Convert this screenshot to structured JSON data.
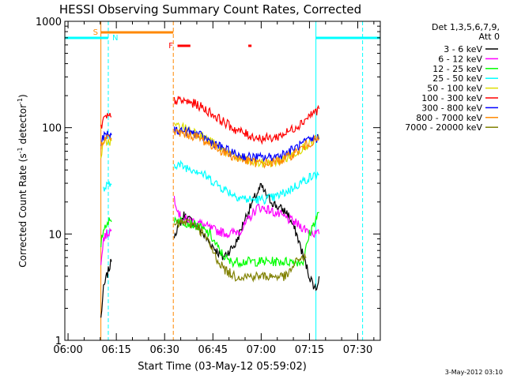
{
  "chart_data": {
    "type": "line",
    "title": "HESSI Observing Summary Count Rates, Corrected",
    "xlabel": "Start Time (03-May-12 05:59:02)",
    "ylabel": "Corrected Count Rate (s",
    "ylabel_sup1": "-1",
    "ylabel_mid": " detector",
    "ylabel_sup2": "-1",
    "ylabel_end": ")",
    "y_scale": "log",
    "ylim": [
      1,
      1000
    ],
    "xlim_minutes": [
      -1.0,
      97.0
    ],
    "x_ticks": [
      {
        "label": "06:00",
        "minute": 0
      },
      {
        "label": "06:15",
        "minute": 15
      },
      {
        "label": "06:30",
        "minute": 30
      },
      {
        "label": "06:45",
        "minute": 45
      },
      {
        "label": "07:00",
        "minute": 60
      },
      {
        "label": "07:15",
        "minute": 75
      },
      {
        "label": "07:30",
        "minute": 90
      }
    ],
    "y_ticks": [
      {
        "label": "1",
        "value": 1
      },
      {
        "label": "10",
        "value": 10
      },
      {
        "label": "100",
        "value": 100
      },
      {
        "label": "1000",
        "value": 1000
      }
    ],
    "date_stamp": "3-May-2012 03:10",
    "legend": {
      "position": "right",
      "header_line1": "Det 1,3,5,6,7,9,",
      "header_line2": "Att 0"
    },
    "series": [
      {
        "name": "3 - 6 keV",
        "color": "#000000",
        "segments": [
          [
            [
              10.2,
              1.6
            ],
            [
              11,
              3
            ],
            [
              12,
              4
            ],
            [
              13,
              5
            ],
            [
              13.5,
              5.5
            ]
          ],
          [
            [
              33,
              10
            ],
            [
              36,
              15
            ],
            [
              40,
              12
            ],
            [
              43,
              9
            ],
            [
              48,
              6
            ],
            [
              52,
              8
            ],
            [
              55,
              14
            ],
            [
              58,
              22
            ],
            [
              60,
              28
            ],
            [
              62,
              22
            ],
            [
              65,
              18
            ],
            [
              68,
              16
            ],
            [
              71,
              10
            ],
            [
              75,
              4
            ],
            [
              77,
              3
            ],
            [
              78,
              4
            ]
          ]
        ]
      },
      {
        "name": "6 - 12 keV",
        "color": "#ff00ff",
        "segments": [
          [
            [
              10.2,
              5
            ],
            [
              11,
              9
            ],
            [
              12,
              10
            ],
            [
              13.5,
              11
            ]
          ],
          [
            [
              33,
              22
            ],
            [
              35,
              14
            ],
            [
              40,
              13
            ],
            [
              45,
              11
            ],
            [
              50,
              10
            ],
            [
              54,
              11
            ],
            [
              57,
              15
            ],
            [
              59,
              18
            ],
            [
              62,
              17
            ],
            [
              66,
              15
            ],
            [
              70,
              13
            ],
            [
              74,
              11
            ],
            [
              77,
              10
            ],
            [
              78,
              10
            ]
          ]
        ]
      },
      {
        "name": "12 - 25 keV",
        "color": "#00ff00",
        "segments": [
          [
            [
              10.2,
              8
            ],
            [
              11,
              11
            ],
            [
              12,
              13
            ],
            [
              13.5,
              13
            ]
          ],
          [
            [
              33,
              14
            ],
            [
              36,
              13
            ],
            [
              40,
              12
            ],
            [
              44,
              10
            ],
            [
              47,
              7
            ],
            [
              50,
              5.5
            ],
            [
              54,
              5.5
            ],
            [
              58,
              5.5
            ],
            [
              62,
              5.5
            ],
            [
              66,
              5.5
            ],
            [
              70,
              5.5
            ],
            [
              73,
              5.5
            ],
            [
              75,
              10
            ],
            [
              77,
              14
            ],
            [
              78,
              16
            ]
          ]
        ]
      },
      {
        "name": "25 - 50 keV",
        "color": "#00ffff",
        "segments": [
          [
            [
              11,
              26
            ],
            [
              12,
              28
            ],
            [
              13.5,
              29
            ]
          ],
          [
            [
              33,
              46
            ],
            [
              36,
              43
            ],
            [
              40,
              40
            ],
            [
              44,
              33
            ],
            [
              48,
              27
            ],
            [
              52,
              23
            ],
            [
              56,
              21
            ],
            [
              60,
              21
            ],
            [
              64,
              22
            ],
            [
              68,
              25
            ],
            [
              72,
              30
            ],
            [
              75,
              34
            ],
            [
              78,
              36
            ]
          ]
        ]
      },
      {
        "name": "50 - 100 keV",
        "color": "#dddd00",
        "segments": [
          [
            [
              10.2,
              55
            ],
            [
              11,
              68
            ],
            [
              12,
              74
            ],
            [
              13.5,
              75
            ]
          ],
          [
            [
              33,
              105
            ],
            [
              36,
              100
            ],
            [
              40,
              90
            ],
            [
              44,
              75
            ],
            [
              48,
              62
            ],
            [
              52,
              53
            ],
            [
              56,
              48
            ],
            [
              60,
              46
            ],
            [
              64,
              47
            ],
            [
              68,
              52
            ],
            [
              72,
              62
            ],
            [
              75,
              72
            ],
            [
              78,
              80
            ]
          ]
        ]
      },
      {
        "name": "100 - 300 keV",
        "color": "#ff0000",
        "segments": [
          [
            [
              10.2,
              100
            ],
            [
              11,
              118
            ],
            [
              12,
              125
            ],
            [
              13.5,
              126
            ]
          ],
          [
            [
              33,
              180
            ],
            [
              36,
              178
            ],
            [
              40,
              165
            ],
            [
              44,
              140
            ],
            [
              48,
              115
            ],
            [
              52,
              96
            ],
            [
              56,
              85
            ],
            [
              60,
              79
            ],
            [
              64,
              80
            ],
            [
              68,
              90
            ],
            [
              72,
              108
            ],
            [
              75,
              130
            ],
            [
              78,
              150
            ]
          ]
        ]
      },
      {
        "name": "300 - 800 keV",
        "color": "#0000ff",
        "segments": [
          [
            [
              10.2,
              70
            ],
            [
              11,
              82
            ],
            [
              12,
              84
            ],
            [
              13.5,
              85
            ]
          ],
          [
            [
              33,
              95
            ],
            [
              36,
              93
            ],
            [
              40,
              87
            ],
            [
              44,
              75
            ],
            [
              48,
              64
            ],
            [
              52,
              56
            ],
            [
              56,
              53
            ],
            [
              60,
              52
            ],
            [
              64,
              53
            ],
            [
              68,
              58
            ],
            [
              72,
              68
            ],
            [
              75,
              76
            ],
            [
              78,
              80
            ]
          ]
        ]
      },
      {
        "name": "800 - 7000 keV",
        "color": "#ff8800",
        "segments": [
          [
            [
              10.2,
              65
            ],
            [
              11,
              78
            ],
            [
              12,
              80
            ],
            [
              13.5,
              80
            ]
          ],
          [
            [
              33,
              90
            ],
            [
              36,
              88
            ],
            [
              40,
              82
            ],
            [
              44,
              70
            ],
            [
              48,
              60
            ],
            [
              52,
              52
            ],
            [
              56,
              48
            ],
            [
              60,
              46
            ],
            [
              64,
              47
            ],
            [
              68,
              52
            ],
            [
              72,
              62
            ],
            [
              75,
              72
            ],
            [
              78,
              78
            ]
          ]
        ]
      },
      {
        "name": "7000 - 20000 keV",
        "color": "#808000",
        "segments": [
          [
            [
              33,
              12
            ],
            [
              36,
              13
            ],
            [
              40,
              12
            ],
            [
              43,
              9
            ],
            [
              46,
              6
            ],
            [
              49,
              4.5
            ],
            [
              52,
              4
            ],
            [
              56,
              4
            ],
            [
              60,
              4
            ],
            [
              64,
              4
            ],
            [
              68,
              4
            ],
            [
              70,
              5
            ],
            [
              72,
              6
            ],
            [
              74,
              6
            ]
          ]
        ]
      }
    ],
    "annotations": {
      "saa": {
        "label": "S",
        "color": "#ff8800",
        "start": 10.2,
        "end": 32.7
      },
      "night": {
        "label": "N",
        "color": "#00ffff",
        "start": -1.0,
        "end": 12.5
      },
      "night2": {
        "color": "#00ffff",
        "start": 77.0,
        "end": 97.0
      },
      "flare": {
        "label": "F",
        "color": "#ff0000",
        "segments": [
          [
            34.0,
            38.0
          ],
          [
            56.0,
            57.0
          ]
        ]
      },
      "vlines": [
        {
          "minute": 10.2,
          "color": "#ff8800",
          "style": "solid"
        },
        {
          "minute": 12.5,
          "color": "#00ffff",
          "style": "dashed"
        },
        {
          "minute": 32.7,
          "color": "#ff8800",
          "style": "dashed"
        },
        {
          "minute": 77.0,
          "color": "#00ffff",
          "style": "solid"
        },
        {
          "minute": 91.5,
          "color": "#00ffff",
          "style": "dashed"
        }
      ]
    }
  }
}
